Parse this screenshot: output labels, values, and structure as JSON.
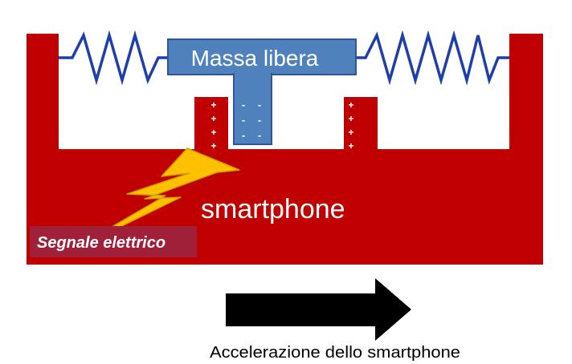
{
  "diagram": {
    "mass_label": "Massa libera",
    "body_label": "smartphone",
    "signal_label": "Segnale elettrico",
    "arrow_caption": "Accelerazione dello smartphone",
    "positive_charge_symbol": "+",
    "negative_charge_symbol": "-",
    "colors": {
      "frame_red": "#C00000",
      "mass_blue": "#4F81BD",
      "mass_border": "#2F5597",
      "spring_blue": "#1F3FA8",
      "bolt_yellow": "#FFC000",
      "signal_box": "#A0203A",
      "arrow_black": "#000000",
      "caption_text": "#000000",
      "label_white": "#FFFFFF"
    },
    "icons": {
      "spring_left": "spring-icon",
      "spring_right": "spring-icon",
      "bolt": "lightning-bolt-icon",
      "arrow": "arrow-right-icon"
    }
  }
}
